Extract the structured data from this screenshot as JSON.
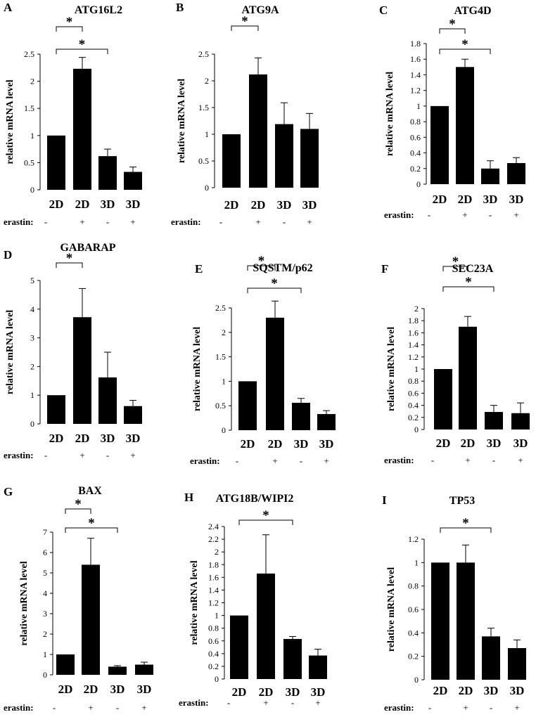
{
  "figure": {
    "conditions": [
      "2D",
      "2D",
      "3D",
      "3D"
    ],
    "erastin_label": "erastin:",
    "erastin_signs": [
      "-",
      "+",
      "-",
      "+"
    ],
    "ylabel": "relative mRNA level",
    "star": "*"
  },
  "chart_data": [
    {
      "type": "bar",
      "letter": "A",
      "title": "ATG16L2",
      "categories": [
        "2D -",
        "2D +",
        "3D -",
        "3D +"
      ],
      "values": [
        1.0,
        2.23,
        0.62,
        0.33
      ],
      "errors": [
        0.0,
        0.21,
        0.13,
        0.09
      ],
      "ylim": [
        0,
        2.5
      ],
      "ytick_labels": [
        "0",
        "0.5",
        "1",
        "1.5",
        "2",
        "2.5"
      ],
      "ylabel": "relative mRNA level",
      "significance": [
        {
          "from": 0,
          "to": 1,
          "label": "*"
        },
        {
          "from": 0,
          "to": 2,
          "label": "*"
        }
      ]
    },
    {
      "type": "bar",
      "letter": "B",
      "title": "ATG9A",
      "categories": [
        "2D -",
        "2D +",
        "3D -",
        "3D +"
      ],
      "values": [
        1.0,
        2.12,
        1.19,
        1.1
      ],
      "errors": [
        0.0,
        0.31,
        0.4,
        0.29
      ],
      "ylim": [
        0,
        2.5
      ],
      "ytick_labels": [
        "0",
        "0.5",
        "1",
        "1.5",
        "2",
        "2.5"
      ],
      "ylabel": "relative mRNA level",
      "significance": [
        {
          "from": 0,
          "to": 1,
          "label": "*"
        }
      ]
    },
    {
      "type": "bar",
      "letter": "C",
      "title": "ATG4D",
      "categories": [
        "2D -",
        "2D +",
        "3D -",
        "3D +"
      ],
      "values": [
        1.0,
        1.5,
        0.2,
        0.27
      ],
      "errors": [
        0.0,
        0.1,
        0.1,
        0.07
      ],
      "ylim": [
        0,
        1.8
      ],
      "ytick_labels": [
        "0",
        "0.2",
        "0.4",
        "0.6",
        "0.8",
        "1",
        "1.2",
        "1.4",
        "1.6",
        "1.8"
      ],
      "ylabel": "relative mRNA level",
      "significance": [
        {
          "from": 0,
          "to": 1,
          "label": "*"
        },
        {
          "from": 0,
          "to": 2,
          "label": "*"
        }
      ]
    },
    {
      "type": "bar",
      "letter": "D",
      "title": "GABARAP",
      "categories": [
        "2D -",
        "2D +",
        "3D -",
        "3D +"
      ],
      "values": [
        1.0,
        3.72,
        1.62,
        0.62
      ],
      "errors": [
        0.0,
        1.0,
        0.88,
        0.2
      ],
      "ylim": [
        0,
        5
      ],
      "ytick_labels": [
        "0",
        "1",
        "2",
        "3",
        "4",
        "5"
      ],
      "ylabel": "relative mRNA level",
      "significance": [
        {
          "from": 0,
          "to": 1,
          "label": "*"
        }
      ]
    },
    {
      "type": "bar",
      "letter": "E",
      "title": "SQSTM/p62",
      "categories": [
        "2D -",
        "2D +",
        "3D -",
        "3D +"
      ],
      "values": [
        1.0,
        2.3,
        0.56,
        0.33
      ],
      "errors": [
        0.0,
        0.34,
        0.09,
        0.07
      ],
      "ylim": [
        0,
        2.5
      ],
      "ytick_labels": [
        "0",
        "0.5",
        "1",
        "1.5",
        "2",
        "2.5"
      ],
      "ylabel": "relative mRNA level",
      "significance": [
        {
          "from": 0,
          "to": 1,
          "label": "*"
        },
        {
          "from": 0,
          "to": 2,
          "label": "*"
        }
      ]
    },
    {
      "type": "bar",
      "letter": "F",
      "title": "SEC23A",
      "categories": [
        "2D -",
        "2D +",
        "3D -",
        "3D +"
      ],
      "values": [
        1.0,
        1.7,
        0.29,
        0.27
      ],
      "errors": [
        0.0,
        0.17,
        0.11,
        0.17
      ],
      "ylim": [
        0,
        2
      ],
      "ytick_labels": [
        "0",
        "0.2",
        "0.4",
        "0.6",
        "0.8",
        "1",
        "1.2",
        "1.4",
        "1.6",
        "1.8",
        "2"
      ],
      "ylabel": "relative mRNA level",
      "significance": [
        {
          "from": 0,
          "to": 1,
          "label": "*"
        },
        {
          "from": 0,
          "to": 2,
          "label": "*"
        }
      ]
    },
    {
      "type": "bar",
      "letter": "G",
      "title": "BAX",
      "categories": [
        "2D -",
        "2D +",
        "3D -",
        "3D +"
      ],
      "values": [
        1.0,
        5.4,
        0.4,
        0.5
      ],
      "errors": [
        0.0,
        1.3,
        0.05,
        0.12
      ],
      "ylim": [
        0,
        7
      ],
      "ytick_labels": [
        "0",
        "1",
        "2",
        "3",
        "4",
        "5",
        "6",
        "7"
      ],
      "ylabel": "relative mRNA level",
      "significance": [
        {
          "from": 0,
          "to": 1,
          "label": "*"
        },
        {
          "from": 0,
          "to": 2,
          "label": "*"
        }
      ]
    },
    {
      "type": "bar",
      "letter": "H",
      "title": "ATG18B/WIPI2",
      "categories": [
        "2D -",
        "2D +",
        "3D -",
        "3D +"
      ],
      "values": [
        1.0,
        1.66,
        0.63,
        0.37
      ],
      "errors": [
        0.0,
        0.61,
        0.04,
        0.1
      ],
      "ylim": [
        0,
        2.4
      ],
      "ytick_labels": [
        "0",
        "0.2",
        "0.4",
        "0.6",
        "0.8",
        "1",
        "1.2",
        "1.4",
        "1.6",
        "1.8",
        "2",
        "2.2",
        "2.4"
      ],
      "ylabel": "relative mRNA level",
      "significance": [
        {
          "from": 0,
          "to": 2,
          "label": "*"
        }
      ]
    },
    {
      "type": "bar",
      "letter": "I",
      "title": "TP53",
      "categories": [
        "2D -",
        "2D +",
        "3D -",
        "3D +"
      ],
      "values": [
        1.0,
        1.0,
        0.37,
        0.27
      ],
      "errors": [
        0.0,
        0.15,
        0.07,
        0.07
      ],
      "ylim": [
        0,
        1.2
      ],
      "ytick_labels": [
        "0",
        "0.2",
        "0.4",
        "0.6",
        "0.8",
        "1",
        "1.2"
      ],
      "ylabel": "relative mRNA level",
      "significance": [
        {
          "from": 0,
          "to": 2,
          "label": "*"
        }
      ]
    }
  ]
}
